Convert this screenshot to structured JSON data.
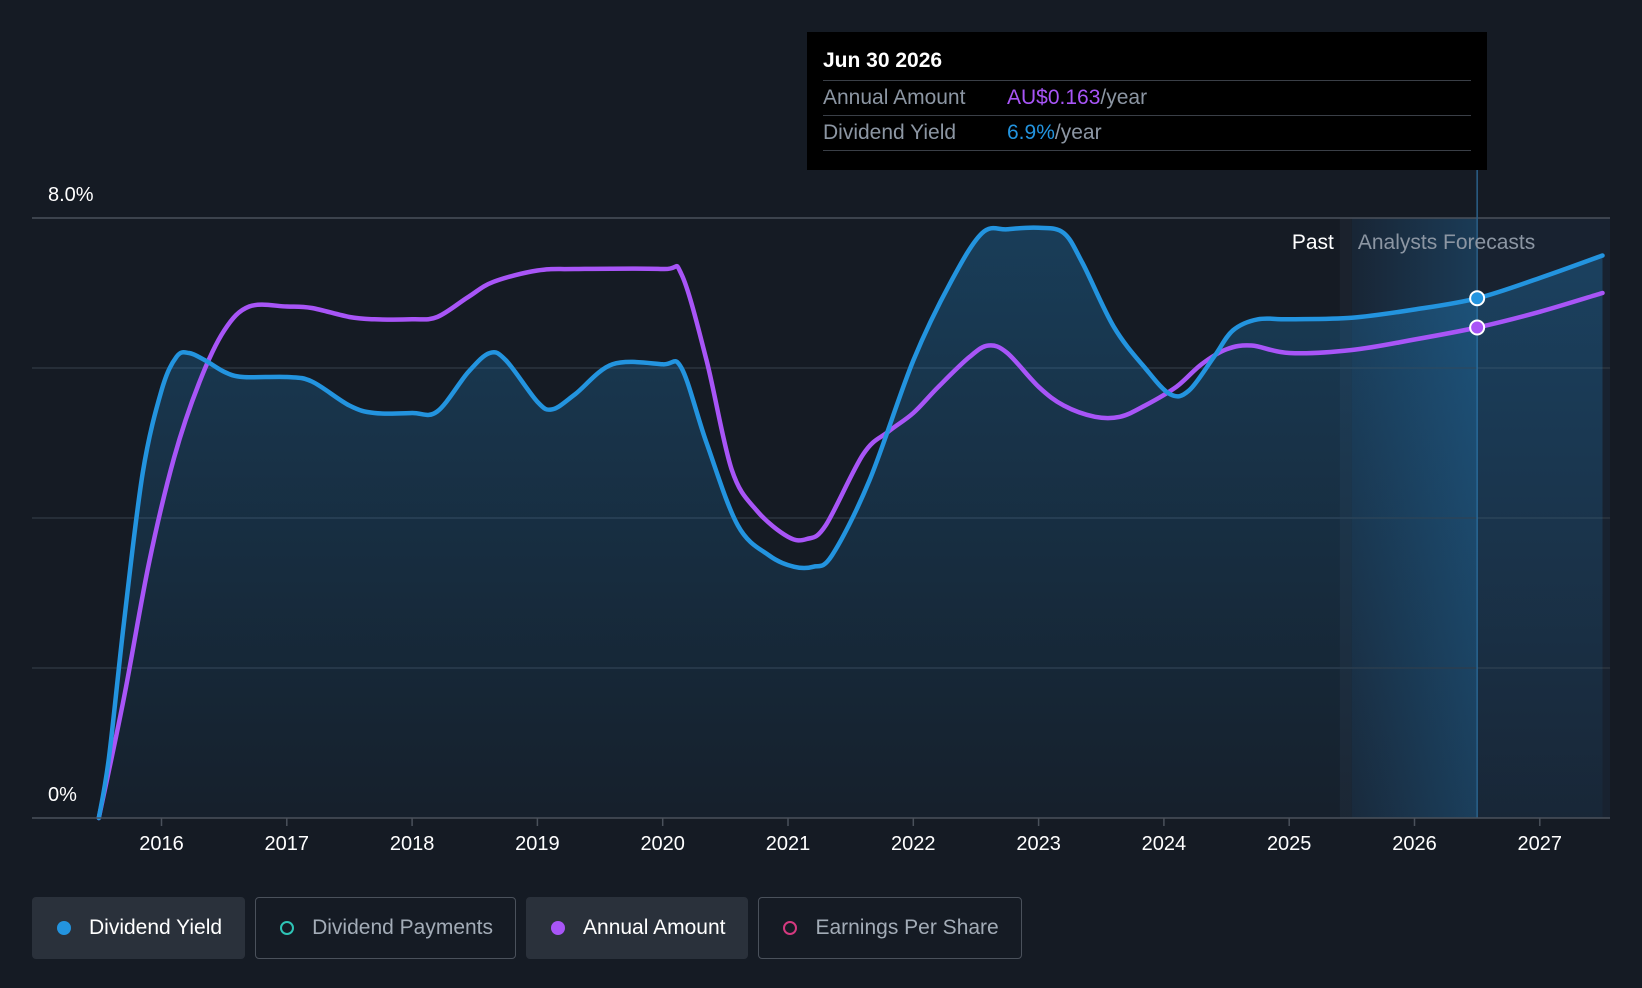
{
  "chart_data": {
    "type": "line",
    "x_unit": "year",
    "xlim": [
      2015.5,
      2027.5
    ],
    "ylim": [
      0,
      8.0
    ],
    "y_tick_labels": [
      {
        "value": 8.0,
        "label": "8.0%"
      },
      {
        "value": 0,
        "label": "0%"
      }
    ],
    "gridlines": [
      2.0,
      4.0,
      6.0,
      8.0
    ],
    "x_ticks": [
      {
        "value": 2016,
        "label": "2016"
      },
      {
        "value": 2017,
        "label": "2017"
      },
      {
        "value": 2018,
        "label": "2018"
      },
      {
        "value": 2019,
        "label": "2019"
      },
      {
        "value": 2020,
        "label": "2020"
      },
      {
        "value": 2021,
        "label": "2021"
      },
      {
        "value": 2022,
        "label": "2022"
      },
      {
        "value": 2023,
        "label": "2023"
      },
      {
        "value": 2024,
        "label": "2024"
      },
      {
        "value": 2025,
        "label": "2025"
      },
      {
        "value": 2026,
        "label": "2026"
      },
      {
        "value": 2027,
        "label": "2027"
      }
    ],
    "forecast_start": 2025.5,
    "highlight_x": 2026.5,
    "region_labels": {
      "past": "Past",
      "forecast": "Analysts Forecasts"
    },
    "series": [
      {
        "name": "Dividend Yield",
        "color": "#2394df",
        "filled": true,
        "points": [
          [
            2015.5,
            0.0
          ],
          [
            2015.58,
            0.8
          ],
          [
            2015.7,
            2.6
          ],
          [
            2015.85,
            4.6
          ],
          [
            2016.0,
            5.7
          ],
          [
            2016.12,
            6.15
          ],
          [
            2016.22,
            6.2
          ],
          [
            2016.35,
            6.1
          ],
          [
            2016.5,
            5.95
          ],
          [
            2016.65,
            5.88
          ],
          [
            2017.0,
            5.88
          ],
          [
            2017.2,
            5.82
          ],
          [
            2017.5,
            5.5
          ],
          [
            2017.7,
            5.4
          ],
          [
            2018.0,
            5.4
          ],
          [
            2018.2,
            5.42
          ],
          [
            2018.45,
            5.95
          ],
          [
            2018.62,
            6.2
          ],
          [
            2018.75,
            6.1
          ],
          [
            2019.0,
            5.55
          ],
          [
            2019.12,
            5.45
          ],
          [
            2019.3,
            5.65
          ],
          [
            2019.6,
            6.05
          ],
          [
            2020.0,
            6.05
          ],
          [
            2020.15,
            6.0
          ],
          [
            2020.35,
            5.0
          ],
          [
            2020.6,
            3.9
          ],
          [
            2020.85,
            3.5
          ],
          [
            2021.05,
            3.35
          ],
          [
            2021.2,
            3.35
          ],
          [
            2021.35,
            3.5
          ],
          [
            2021.65,
            4.5
          ],
          [
            2022.0,
            6.1
          ],
          [
            2022.3,
            7.15
          ],
          [
            2022.55,
            7.8
          ],
          [
            2022.75,
            7.85
          ],
          [
            2023.0,
            7.87
          ],
          [
            2023.2,
            7.8
          ],
          [
            2023.35,
            7.4
          ],
          [
            2023.6,
            6.55
          ],
          [
            2023.85,
            6.0
          ],
          [
            2024.05,
            5.65
          ],
          [
            2024.2,
            5.7
          ],
          [
            2024.4,
            6.15
          ],
          [
            2024.55,
            6.5
          ],
          [
            2024.75,
            6.65
          ],
          [
            2025.0,
            6.65
          ],
          [
            2025.5,
            6.67
          ],
          [
            2026.0,
            6.78
          ],
          [
            2026.5,
            6.93
          ],
          [
            2027.0,
            7.2
          ],
          [
            2027.5,
            7.5
          ]
        ]
      },
      {
        "name": "Annual Amount",
        "color": "#a855f7",
        "filled": false,
        "points": [
          [
            2015.5,
            0.0
          ],
          [
            2015.7,
            1.6
          ],
          [
            2015.9,
            3.4
          ],
          [
            2016.1,
            4.8
          ],
          [
            2016.3,
            5.8
          ],
          [
            2016.5,
            6.5
          ],
          [
            2016.7,
            6.82
          ],
          [
            2017.0,
            6.82
          ],
          [
            2017.2,
            6.8
          ],
          [
            2017.5,
            6.68
          ],
          [
            2017.7,
            6.65
          ],
          [
            2018.0,
            6.65
          ],
          [
            2018.2,
            6.68
          ],
          [
            2018.45,
            6.95
          ],
          [
            2018.65,
            7.15
          ],
          [
            2019.0,
            7.3
          ],
          [
            2019.3,
            7.32
          ],
          [
            2020.0,
            7.32
          ],
          [
            2020.15,
            7.25
          ],
          [
            2020.35,
            6.1
          ],
          [
            2020.55,
            4.65
          ],
          [
            2020.75,
            4.1
          ],
          [
            2021.0,
            3.75
          ],
          [
            2021.15,
            3.72
          ],
          [
            2021.3,
            3.9
          ],
          [
            2021.6,
            4.85
          ],
          [
            2021.8,
            5.15
          ],
          [
            2022.0,
            5.4
          ],
          [
            2022.2,
            5.75
          ],
          [
            2022.45,
            6.15
          ],
          [
            2022.6,
            6.3
          ],
          [
            2022.75,
            6.2
          ],
          [
            2023.0,
            5.75
          ],
          [
            2023.2,
            5.5
          ],
          [
            2023.45,
            5.35
          ],
          [
            2023.65,
            5.35
          ],
          [
            2023.85,
            5.5
          ],
          [
            2024.1,
            5.75
          ],
          [
            2024.3,
            6.05
          ],
          [
            2024.5,
            6.25
          ],
          [
            2024.7,
            6.3
          ],
          [
            2025.0,
            6.2
          ],
          [
            2025.5,
            6.24
          ],
          [
            2026.0,
            6.38
          ],
          [
            2026.5,
            6.54
          ],
          [
            2027.0,
            6.75
          ],
          [
            2027.5,
            7.0
          ]
        ]
      }
    ]
  },
  "tooltip": {
    "date": "Jun 30 2026",
    "rows": [
      {
        "label": "Annual Amount",
        "value": "AU$0.163",
        "unit": "/year"
      },
      {
        "label": "Dividend Yield",
        "value": "6.9%",
        "unit": "/year"
      }
    ]
  },
  "legend": [
    {
      "label": "Dividend Yield",
      "color": "#2394df",
      "active": true
    },
    {
      "label": "Dividend Payments",
      "color": "#2ec4b6",
      "active": false
    },
    {
      "label": "Annual Amount",
      "color": "#a855f7",
      "active": true
    },
    {
      "label": "Earnings Per Share",
      "color": "#d4397f",
      "active": false
    }
  ]
}
